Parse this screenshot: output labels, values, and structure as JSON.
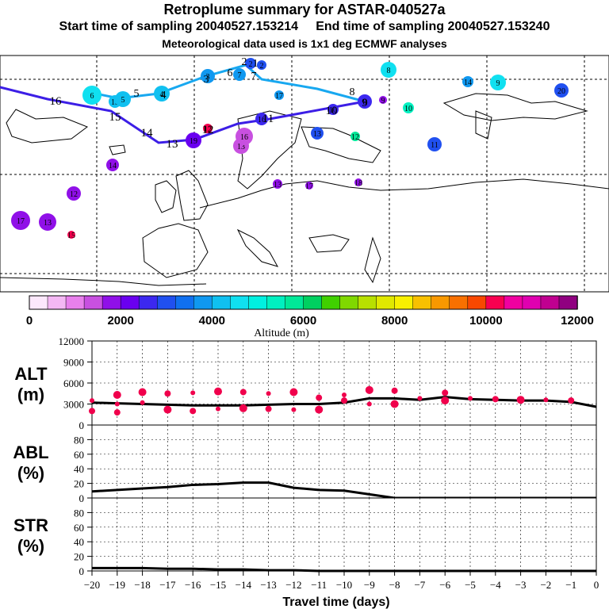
{
  "header": {
    "title": "Retroplume summary for ASTAR-040527a",
    "line2": "Start time of sampling 20040527.153214     End time of sampling 20040527.153240",
    "line3": "Meteorological data used is 1x1 deg ECMWF analyses"
  },
  "colorbar": {
    "title": "Altitude (m)",
    "tick_labels": [
      "0",
      "2000",
      "4000",
      "6000",
      "8000",
      "10000",
      "12000"
    ],
    "colors": [
      "#fce8fc",
      "#f4b8f4",
      "#e880ec",
      "#c850e0",
      "#9010e8",
      "#6a00f0",
      "#3c28f0",
      "#2050f0",
      "#1070f0",
      "#1098f0",
      "#10c0f0",
      "#10e0f0",
      "#00f0e0",
      "#00f0c0",
      "#00e898",
      "#00d060",
      "#40d000",
      "#80d800",
      "#b8e000",
      "#e0e800",
      "#f8f000",
      "#f8c000",
      "#f89800",
      "#f87000",
      "#f84800",
      "#f80050",
      "#f000a0",
      "#e000b0",
      "#c00090",
      "#900080"
    ]
  },
  "map": {
    "track_dark_color": "#3c1ee6",
    "track_light_color": "#18a8f0",
    "track_dark_labels": [
      {
        "t": "16",
        "name": "track-label-16"
      },
      {
        "t": "15",
        "name": "track-label-15"
      },
      {
        "t": "14",
        "name": "track-label-14"
      },
      {
        "t": "13",
        "name": "track-label-13"
      },
      {
        "t": "12",
        "name": "track-label-12"
      },
      {
        "t": "11",
        "name": "track-label-11"
      },
      {
        "t": "10",
        "name": "track-label-10"
      },
      {
        "t": "9",
        "name": "track-label-9"
      }
    ],
    "track_light_labels": [
      {
        "t": "8",
        "name": "track-label-8"
      },
      {
        "t": "7",
        "name": "track-label-7"
      },
      {
        "t": "6",
        "name": "track-label-6"
      },
      {
        "t": "5",
        "name": "track-label-5"
      },
      {
        "t": "4",
        "name": "track-label-4"
      },
      {
        "t": "3",
        "name": "track-label-3"
      },
      {
        "t": "2",
        "name": "track-label-2"
      },
      {
        "t": "1",
        "name": "track-label-1"
      }
    ],
    "cluster_labels": [
      "8",
      "8",
      "9",
      "9",
      "10",
      "10",
      "11",
      "12",
      "12",
      "12",
      "13",
      "13",
      "13",
      "13",
      "14",
      "14",
      "15",
      "15",
      "16",
      "16",
      "17",
      "17",
      "17",
      "18",
      "19",
      "20",
      "2",
      "2",
      "3",
      "4",
      "5",
      "6",
      "7"
    ]
  },
  "chart_data": [
    {
      "type": "scatter",
      "panel": "ALT",
      "ylabel_lines": [
        "ALT",
        "(m)"
      ],
      "y_ticks": [
        "0",
        "3000",
        "6000",
        "9000",
        "12000"
      ],
      "ylim": [
        0,
        12000
      ],
      "xlim": [
        -20,
        0
      ],
      "series": [
        {
          "name": "median altitude",
          "x": [
            -20,
            -19,
            -18,
            -17,
            -16,
            -15,
            -14,
            -13,
            -12,
            -11,
            -10,
            -9,
            -8,
            -7,
            -6,
            -5,
            -4,
            -3,
            -2,
            -1,
            0
          ],
          "values": [
            3200,
            3100,
            3000,
            2900,
            2800,
            2800,
            2800,
            2900,
            3000,
            3000,
            3200,
            3800,
            3800,
            3600,
            4000,
            3700,
            3600,
            3500,
            3500,
            3300,
            2600
          ]
        },
        {
          "name": "cluster altitudes",
          "x": [
            -20,
            -20,
            -19,
            -19,
            -19,
            -18,
            -18,
            -17,
            -17,
            -16,
            -16,
            -15,
            -15,
            -14,
            -14,
            -13,
            -13,
            -12,
            -12,
            -11,
            -11,
            -10,
            -10,
            -9,
            -9,
            -8,
            -8,
            -7,
            -6,
            -6,
            -5,
            -4,
            -3,
            -2,
            -1
          ],
          "values": [
            3500,
            2000,
            4300,
            3000,
            1800,
            4700,
            3200,
            4500,
            2200,
            4600,
            2000,
            4800,
            2300,
            4700,
            2400,
            4500,
            2300,
            4700,
            2200,
            3900,
            2200,
            4300,
            3500,
            5000,
            3000,
            4900,
            3000,
            3800,
            4600,
            3500,
            3800,
            3700,
            3600,
            3600,
            3500
          ]
        }
      ]
    },
    {
      "type": "line",
      "panel": "ABL",
      "ylabel_lines": [
        "ABL",
        "(%)"
      ],
      "y_ticks": [
        "0",
        "20",
        "40",
        "60",
        "80"
      ],
      "ylim": [
        0,
        100
      ],
      "xlim": [
        -20,
        0
      ],
      "series": [
        {
          "name": "ABL fraction",
          "x": [
            -20,
            -19,
            -18,
            -17,
            -16,
            -15,
            -14,
            -13,
            -12,
            -11,
            -10,
            -9,
            -8,
            -7,
            -6,
            -5,
            -4,
            -3,
            -2,
            -1,
            0
          ],
          "values": [
            9,
            11,
            13,
            15,
            18,
            19,
            21,
            21,
            14,
            11,
            10,
            5,
            0,
            0,
            0,
            0,
            0,
            0,
            0,
            0,
            0
          ]
        }
      ]
    },
    {
      "type": "line",
      "panel": "STR",
      "ylabel_lines": [
        "STR",
        "(%)"
      ],
      "y_ticks": [
        "0",
        "20",
        "40",
        "60",
        "80"
      ],
      "ylim": [
        0,
        100
      ],
      "xlim": [
        -20,
        0
      ],
      "xlabel": "Travel time (days)",
      "x_ticks": [
        "−20",
        "−19",
        "−18",
        "−17",
        "−16",
        "−15",
        "−14",
        "−13",
        "−12",
        "−11",
        "−10",
        "−9",
        "−8",
        "−7",
        "−6",
        "−5",
        "−4",
        "−3",
        "−2",
        "−1",
        "0"
      ],
      "series": [
        {
          "name": "stratospheric fraction",
          "x": [
            -20,
            -19,
            -18,
            -17,
            -16,
            -15,
            -14,
            -13,
            -12,
            -11,
            -10,
            -9,
            -8,
            -7,
            -6,
            -5,
            -4,
            -3,
            -2,
            -1,
            0
          ],
          "values": [
            4,
            4,
            4,
            3,
            3,
            2,
            2,
            1,
            1,
            0,
            0,
            0,
            0,
            0,
            0,
            0,
            0,
            0,
            0,
            0,
            0
          ]
        }
      ]
    }
  ]
}
